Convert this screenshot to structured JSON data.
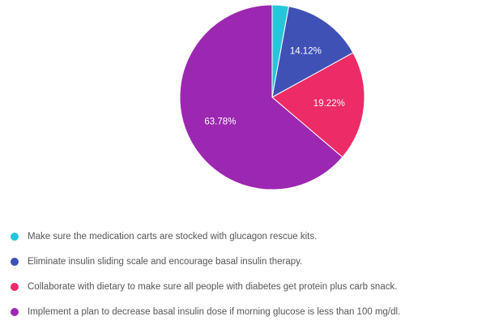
{
  "chart_data": {
    "type": "pie",
    "title": "",
    "series": [
      {
        "label": "Make sure the medication carts are stocked with glucagon rescue kits.",
        "value": 2.88,
        "display": "",
        "color": "#26c6da"
      },
      {
        "label": "Eliminate insulin sliding scale and encourage basal insulin therapy.",
        "value": 14.12,
        "display": "14.12%",
        "color": "#3f51b5"
      },
      {
        "label": "Collaborate with dietary to make sure all people with diabetes get protein plus carb snack.",
        "value": 19.22,
        "display": "19.22%",
        "color": "#ec2b67"
      },
      {
        "label": "Implement a plan to decrease basal insulin dose if morning glucose is less than 100 mg/dl.",
        "value": 63.78,
        "display": "63.78%",
        "color": "#9c27b0"
      }
    ],
    "legend_position": "bottom"
  }
}
